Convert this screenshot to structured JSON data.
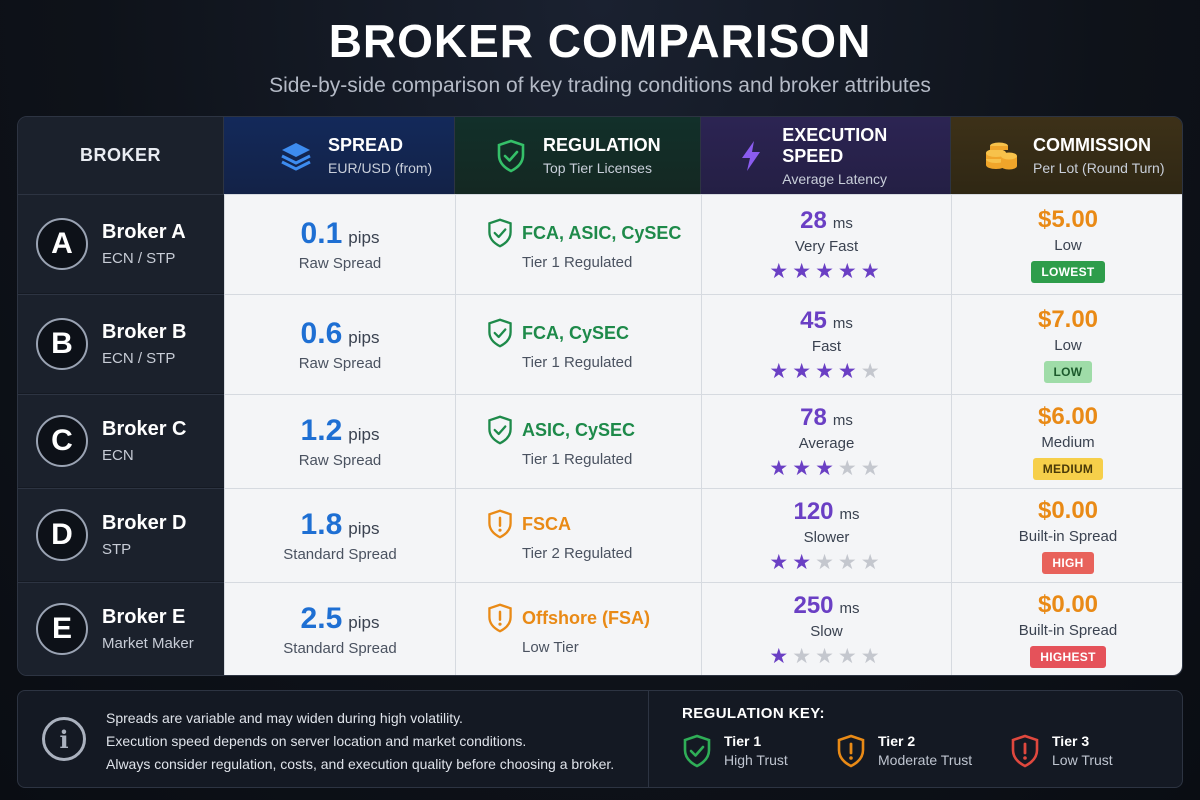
{
  "title": "BROKER COMPARISON",
  "subtitle": "Side-by-side comparison of key trading conditions and broker attributes",
  "colors": {
    "spread": "#1e6fd3",
    "reg_green": "#1e8a4a",
    "reg_orange": "#e98a16",
    "exec_purple": "#6a3fc4",
    "commission": "#e98a16",
    "tier3_red": "#e0483e"
  },
  "headers": {
    "broker": "BROKER",
    "spread": {
      "title": "SPREAD",
      "sub": "EUR/USD (from)",
      "icon": "layers-icon"
    },
    "regulation": {
      "title": "REGULATION",
      "sub": "Top Tier Licenses",
      "icon": "shield-check-icon"
    },
    "execution": {
      "title": "EXECUTION SPEED",
      "sub": "Average Latency",
      "icon": "lightning-icon"
    },
    "commission": {
      "title": "COMMISSION",
      "sub": "Per Lot (Round Turn)",
      "icon": "coins-icon"
    }
  },
  "rows": [
    {
      "letter": "A",
      "name": "Broker A",
      "type": "ECN / STP",
      "spread": "0.1",
      "spread_unit": "pips",
      "spread_sub": "Raw Spread",
      "reg": "FCA, ASIC, CySEC",
      "reg_sub": "Tier 1 Regulated",
      "reg_level": "green",
      "exec": "28",
      "exec_unit": "ms",
      "exec_sub": "Very Fast",
      "stars": 5,
      "comm": "$5.00",
      "comm_sub": "Low",
      "badge": "LOWEST",
      "badge_bg": "#2e9d4b",
      "badge_fg": "#ffffff"
    },
    {
      "letter": "B",
      "name": "Broker B",
      "type": "ECN / STP",
      "spread": "0.6",
      "spread_unit": "pips",
      "spread_sub": "Raw Spread",
      "reg": "FCA, CySEC",
      "reg_sub": "Tier 1 Regulated",
      "reg_level": "green",
      "exec": "45",
      "exec_unit": "ms",
      "exec_sub": "Fast",
      "stars": 4,
      "comm": "$7.00",
      "comm_sub": "Low",
      "badge": "LOW",
      "badge_bg": "#9fdca8",
      "badge_fg": "#1c5a2c"
    },
    {
      "letter": "C",
      "name": "Broker C",
      "type": "ECN",
      "spread": "1.2",
      "spread_unit": "pips",
      "spread_sub": "Raw Spread",
      "reg": "ASIC, CySEC",
      "reg_sub": "Tier 1 Regulated",
      "reg_level": "green",
      "exec": "78",
      "exec_unit": "ms",
      "exec_sub": "Average",
      "stars": 3,
      "comm": "$6.00",
      "comm_sub": "Medium",
      "badge": "MEDIUM",
      "badge_bg": "#f6cf4a",
      "badge_fg": "#4a3a08"
    },
    {
      "letter": "D",
      "name": "Broker D",
      "type": "STP",
      "spread": "1.8",
      "spread_unit": "pips",
      "spread_sub": "Standard Spread",
      "reg": "FSCA",
      "reg_sub": "Tier 2 Regulated",
      "reg_level": "orange",
      "exec": "120",
      "exec_unit": "ms",
      "exec_sub": "Slower",
      "stars": 2,
      "comm": "$0.00",
      "comm_sub": "Built-in Spread",
      "badge": "HIGH",
      "badge_bg": "#e8625b",
      "badge_fg": "#ffffff"
    },
    {
      "letter": "E",
      "name": "Broker E",
      "type": "Market Maker",
      "spread": "2.5",
      "spread_unit": "pips",
      "spread_sub": "Standard Spread",
      "reg": "Offshore (FSA)",
      "reg_sub": "Low Tier",
      "reg_level": "orange",
      "exec": "250",
      "exec_unit": "ms",
      "exec_sub": "Slow",
      "stars": 1,
      "comm": "$0.00",
      "comm_sub": "Built-in Spread",
      "badge": "HIGHEST",
      "badge_bg": "#e5525a",
      "badge_fg": "#ffffff"
    }
  ],
  "footer": {
    "notes": [
      "Spreads are variable and may widen during high volatility.",
      "Execution speed depends on server location and market conditions.",
      "Always consider regulation, costs, and execution quality before choosing a broker."
    ],
    "key_title": "REGULATION KEY:",
    "key": [
      {
        "name": "Tier 1",
        "sub": "High Trust",
        "color": "#2fae57"
      },
      {
        "name": "Tier 2",
        "sub": "Moderate Trust",
        "color": "#e98a16"
      },
      {
        "name": "Tier 3",
        "sub": "Low Trust",
        "color": "#e0483e"
      }
    ]
  }
}
